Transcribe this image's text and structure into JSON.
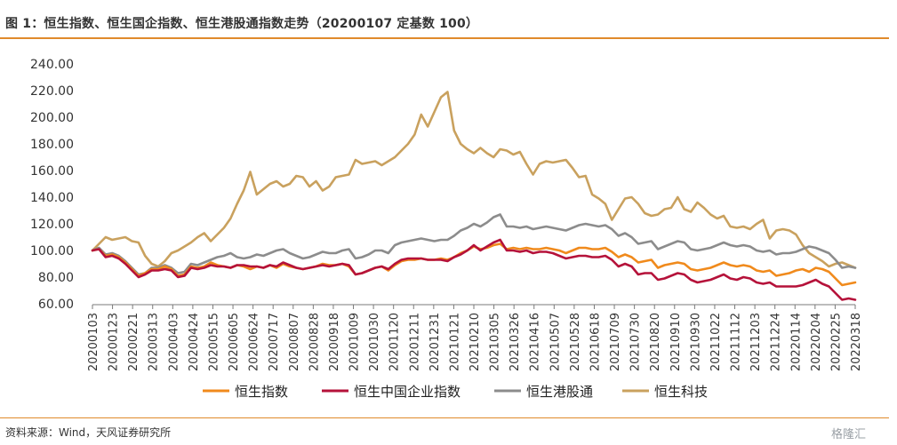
{
  "title": "图 1：恒生指数、恒生国企指数、恒生港股通指数走势（20200107 定基数 100）",
  "source": "资料来源：Wind，天风证券研究所",
  "watermark": "格隆汇",
  "chart_data": {
    "type": "line",
    "ylim": [
      60,
      240
    ],
    "yticks": [
      "60.00",
      "80.00",
      "100.00",
      "120.00",
      "140.00",
      "160.00",
      "180.00",
      "200.00",
      "220.00",
      "240.00"
    ],
    "xticks": [
      "20200103",
      "20200123",
      "20200221",
      "20200313",
      "20200403",
      "20200424",
      "20200515",
      "20200605",
      "20200624",
      "20200717",
      "20200807",
      "20200828",
      "20200918",
      "20201009",
      "20201030",
      "20201120",
      "20201211",
      "20201231",
      "20210121",
      "20210210",
      "20210305",
      "20210326",
      "20210416",
      "20210507",
      "20210528",
      "20210618",
      "20210709",
      "20210730",
      "20210820",
      "20210910",
      "20210930",
      "20211022",
      "20211112",
      "20211203",
      "20211224",
      "20220114",
      "20220204",
      "20220225",
      "20220318"
    ],
    "legend_position": "bottom",
    "grid": false,
    "series": [
      {
        "name": "恒生指数",
        "color": "#f08a1c",
        "values": [
          100,
          101,
          96,
          97,
          95,
          91,
          86,
          81,
          83,
          86,
          86,
          88,
          86,
          81,
          82,
          88,
          87,
          88,
          91,
          89,
          88,
          87,
          89,
          88,
          86,
          88,
          87,
          89,
          87,
          90,
          88,
          87,
          86,
          87,
          88,
          90,
          89,
          89,
          90,
          88,
          82,
          83,
          85,
          87,
          88,
          85,
          89,
          92,
          93,
          93,
          94,
          93,
          93,
          94,
          93,
          95,
          98,
          100,
          103,
          101,
          102,
          104,
          105,
          101,
          102,
          101,
          102,
          101,
          101,
          102,
          101,
          100,
          98,
          100,
          102,
          102,
          101,
          101,
          102,
          99,
          95,
          97,
          95,
          91,
          92,
          93,
          87,
          89,
          90,
          91,
          90,
          86,
          85,
          86,
          87,
          89,
          91,
          89,
          88,
          89,
          88,
          85,
          84,
          85,
          81,
          82,
          83,
          85,
          86,
          84,
          87,
          86,
          84,
          79,
          74,
          75,
          76
        ]
      },
      {
        "name": "恒生中国企业指数",
        "color": "#b5123a",
        "values": [
          100,
          101,
          95,
          96,
          94,
          90,
          85,
          80,
          82,
          85,
          85,
          86,
          85,
          80,
          81,
          87,
          86,
          87,
          89,
          88,
          88,
          87,
          89,
          89,
          88,
          88,
          87,
          89,
          88,
          91,
          89,
          87,
          86,
          87,
          88,
          89,
          88,
          89,
          90,
          89,
          82,
          83,
          85,
          87,
          88,
          86,
          90,
          93,
          94,
          94,
          94,
          93,
          93,
          93,
          92,
          95,
          97,
          100,
          104,
          100,
          103,
          106,
          108,
          100,
          100,
          99,
          100,
          98,
          99,
          99,
          98,
          96,
          94,
          95,
          96,
          96,
          95,
          95,
          96,
          93,
          88,
          90,
          88,
          82,
          83,
          83,
          78,
          79,
          81,
          83,
          82,
          78,
          76,
          77,
          78,
          80,
          82,
          79,
          78,
          80,
          79,
          76,
          75,
          76,
          73,
          73,
          73,
          73,
          74,
          76,
          78,
          75,
          73,
          68,
          63,
          64,
          63
        ]
      },
      {
        "name": "恒生港股通",
        "color": "#8c8c8c",
        "values": [
          100,
          102,
          97,
          98,
          96,
          92,
          87,
          82,
          83,
          87,
          87,
          89,
          87,
          83,
          84,
          90,
          89,
          91,
          93,
          95,
          96,
          98,
          95,
          94,
          95,
          97,
          96,
          98,
          100,
          101,
          98,
          96,
          94,
          95,
          97,
          99,
          98,
          98,
          100,
          101,
          94,
          95,
          97,
          100,
          100,
          98,
          104,
          106,
          107,
          108,
          109,
          108,
          107,
          108,
          108,
          111,
          115,
          117,
          120,
          118,
          121,
          125,
          127,
          118,
          118,
          117,
          118,
          116,
          117,
          118,
          117,
          116,
          115,
          117,
          119,
          120,
          119,
          118,
          119,
          116,
          111,
          113,
          110,
          105,
          106,
          107,
          101,
          103,
          105,
          107,
          106,
          101,
          100,
          101,
          102,
          104,
          106,
          104,
          103,
          104,
          103,
          100,
          99,
          100,
          97,
          98,
          98,
          99,
          101,
          103,
          102,
          100,
          98,
          93,
          87,
          88,
          87
        ]
      },
      {
        "name": "恒生科技",
        "color": "#c9a15e",
        "values": [
          100,
          105,
          110,
          108,
          109,
          110,
          107,
          106,
          96,
          90,
          88,
          92,
          98,
          100,
          103,
          106,
          110,
          113,
          107,
          112,
          117,
          124,
          135,
          145,
          159,
          142,
          146,
          150,
          152,
          148,
          150,
          156,
          155,
          148,
          152,
          145,
          148,
          155,
          156,
          157,
          168,
          165,
          166,
          167,
          164,
          167,
          170,
          175,
          180,
          187,
          202,
          193,
          204,
          215,
          219,
          190,
          180,
          176,
          173,
          177,
          173,
          170,
          176,
          175,
          172,
          174,
          165,
          157,
          165,
          167,
          166,
          167,
          168,
          162,
          155,
          156,
          142,
          139,
          135,
          123,
          131,
          139,
          140,
          135,
          128,
          126,
          127,
          131,
          132,
          140,
          131,
          129,
          136,
          132,
          127,
          124,
          126,
          118,
          117,
          118,
          116,
          120,
          123,
          109,
          115,
          116,
          115,
          112,
          104,
          98,
          95,
          92,
          88,
          90,
          91,
          89,
          87
        ]
      }
    ]
  }
}
